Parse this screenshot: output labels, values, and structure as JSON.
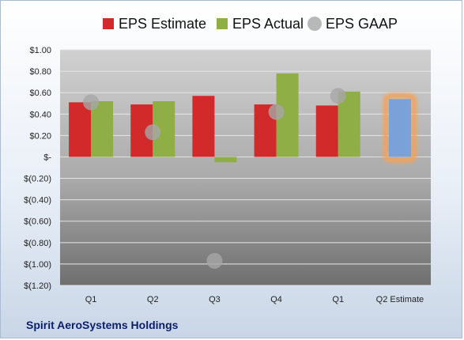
{
  "legend": {
    "estimate_label": "EPS Estimate",
    "actual_label": "EPS Actual",
    "gaap_label": "EPS GAAP"
  },
  "company": "Spirit AeroSystems Holdings",
  "colors": {
    "estimate": "#d22a2a",
    "actual": "#8fae45",
    "gaap": "#a6a6a6",
    "projected_estimate": "#7aa1d8",
    "projected_glow": "#f4a259"
  },
  "chart_data": {
    "type": "bar",
    "categories": [
      "Q1",
      "Q2",
      "Q3",
      "Q4",
      "Q1",
      "Q2 Estimate"
    ],
    "series": [
      {
        "name": "EPS Estimate",
        "values": [
          0.51,
          0.49,
          0.57,
          0.49,
          0.48,
          null
        ]
      },
      {
        "name": "EPS Actual",
        "values": [
          0.52,
          0.52,
          -0.05,
          0.78,
          0.61,
          0.54
        ]
      },
      {
        "name": "EPS GAAP",
        "values": [
          0.51,
          0.23,
          -0.97,
          0.42,
          0.57,
          null
        ]
      }
    ],
    "y_tick_labels": [
      "$1.00",
      "$0.80",
      "$0.60",
      "$0.40",
      "$0.20",
      "$-",
      "$(0.20)",
      "$(0.40)",
      "$(0.60)",
      "$(0.80)",
      "$(1.00)",
      "$(1.20)"
    ],
    "ylim": [
      -1.2,
      1.0
    ],
    "grid": true,
    "legend_position": "top",
    "title": "",
    "xlabel": "",
    "ylabel": ""
  }
}
